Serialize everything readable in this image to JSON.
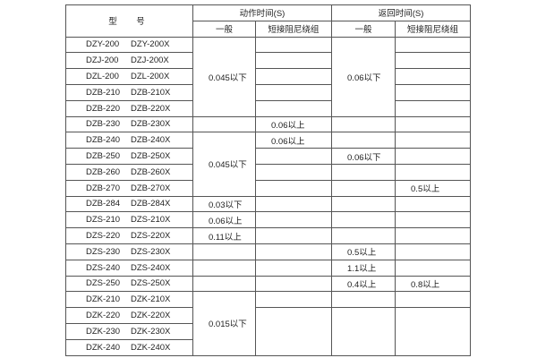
{
  "header": {
    "model": "型　号",
    "action_time": "动作时间(S)",
    "return_time": "返回时间(S)",
    "general": "一般",
    "short_winding": "短接阻尼绕组"
  },
  "rows": [
    {
      "model_a": "DZY-200",
      "model_b": "DZY-200X",
      "action_general": "0.045以下",
      "action_short": "",
      "return_general": "0.06以下",
      "return_short": ""
    },
    {
      "model_a": "DZJ-200",
      "model_b": "DZJ-200X",
      "action_short": "",
      "return_short": ""
    },
    {
      "model_a": "DZL-200",
      "model_b": "DZL-200X",
      "action_short": "",
      "return_short": ""
    },
    {
      "model_a": "DZB-210",
      "model_b": "DZB-210X",
      "action_short": "",
      "return_short": ""
    },
    {
      "model_a": "DZB-220",
      "model_b": "DZB-220X",
      "action_short": "",
      "return_short": ""
    },
    {
      "model_a": "DZB-230",
      "model_b": "DZB-230X",
      "action_general": "",
      "action_short": "0.06以上",
      "return_general": "",
      "return_short": ""
    },
    {
      "model_a": "DZB-240",
      "model_b": "DZB-240X",
      "action_general": "0.045以下",
      "action_short": "0.06以上",
      "return_general": "",
      "return_short": ""
    },
    {
      "model_a": "DZB-250",
      "model_b": "DZB-250X",
      "action_short": "",
      "return_general": "0.06以下",
      "return_short": ""
    },
    {
      "model_a": "DZB-260",
      "model_b": "DZB-260X",
      "action_short": "",
      "return_general": "",
      "return_short": ""
    },
    {
      "model_a": "DZB-270",
      "model_b": "DZB-270X",
      "action_short": "",
      "return_general": "",
      "return_short": "0.5以上"
    },
    {
      "model_a": "DZB-284",
      "model_b": "DZB-284X",
      "action_general": "0.03以下",
      "action_short": "",
      "return_general": "",
      "return_short": ""
    },
    {
      "model_a": "DZS-210",
      "model_b": "DZS-210X",
      "action_general": "0.06以上",
      "action_short": "",
      "return_general": "",
      "return_short": ""
    },
    {
      "model_a": "DZS-220",
      "model_b": "DZS-220X",
      "action_general": "0.11以上",
      "action_short": "",
      "return_general": "",
      "return_short": ""
    },
    {
      "model_a": "DZS-230",
      "model_b": "DZS-230X",
      "action_general": "",
      "action_short": "",
      "return_general": "0.5以上",
      "return_short": ""
    },
    {
      "model_a": "DZS-240",
      "model_b": "DZS-240X",
      "action_general": "",
      "action_short": "",
      "return_general": "1.1以上",
      "return_short": ""
    },
    {
      "model_a": "DZS-250",
      "model_b": "DZS-250X",
      "action_general": "",
      "action_short": "",
      "return_general": "0.4以上",
      "return_short": "0.8以上"
    },
    {
      "model_a": "DZK-210",
      "model_b": "DZK-210X",
      "action_general": "0.015以下",
      "action_short": "",
      "return_general": "",
      "return_short": ""
    },
    {
      "model_a": "DZK-220",
      "model_b": "DZK-220X",
      "action_short": "",
      "return_general": "",
      "return_short": ""
    },
    {
      "model_a": "DZK-230",
      "model_b": "DZK-230X"
    },
    {
      "model_a": "DZK-240",
      "model_b": "DZK-240X"
    }
  ]
}
